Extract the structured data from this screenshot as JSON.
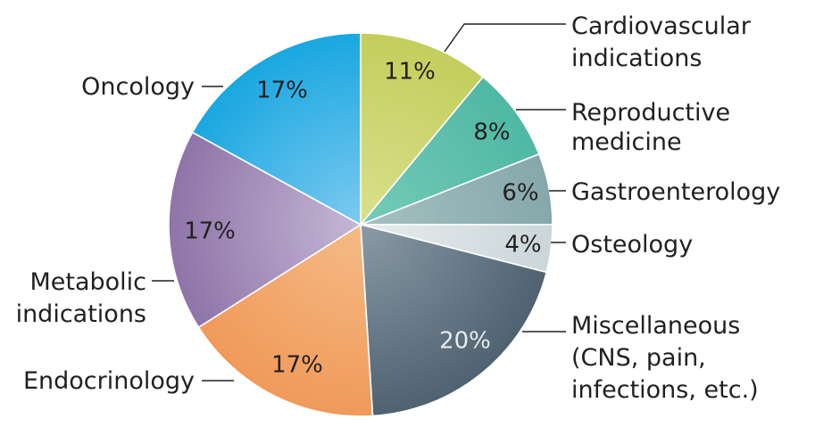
{
  "chart_data": {
    "type": "pie",
    "title": "",
    "slices": [
      {
        "label_lines": [
          "Cardiovascular",
          "indications"
        ],
        "value": 11,
        "label": "11%",
        "color": "#c3ce5c",
        "color_light": "#d9e08e",
        "text_color": "#231f20"
      },
      {
        "label_lines": [
          "Reproductive",
          "medicine"
        ],
        "value": 8,
        "label": "8%",
        "color": "#4fb8a4",
        "color_light": "#76cbb9",
        "text_color": "#231f20"
      },
      {
        "label_lines": [
          "Gastroenterology"
        ],
        "value": 6,
        "label": "6%",
        "color": "#85a8ab",
        "color_light": "#a6c0c2",
        "text_color": "#231f20"
      },
      {
        "label_lines": [
          "Osteology"
        ],
        "value": 4,
        "label": "4%",
        "color": "#cbd6d9",
        "color_light": "#e6ecee",
        "text_color": "#231f20"
      },
      {
        "label_lines": [
          "Miscellaneous",
          "(CNS, pain,",
          "infections, etc.)"
        ],
        "value": 20,
        "label": "20%",
        "color": "#4f6271",
        "color_light": "#8a9aa6",
        "text_color": "#e6ecef"
      },
      {
        "label_lines": [
          "Endocrinology"
        ],
        "value": 17,
        "label": "17%",
        "color": "#f09a5a",
        "color_light": "#f5bb86",
        "text_color": "#231f20"
      },
      {
        "label_lines": [
          "Metabolic",
          "indications"
        ],
        "value": 17,
        "label": "17%",
        "color": "#8e74a8",
        "color_light": "#c6b7d5",
        "text_color": "#231f20"
      },
      {
        "label_lines": [
          "Oncology"
        ],
        "value": 17,
        "label": "17%",
        "color": "#19a7e0",
        "color_light": "#7ccaf0",
        "text_color": "#231f20"
      }
    ],
    "legend": "none",
    "labels_outside": true
  }
}
